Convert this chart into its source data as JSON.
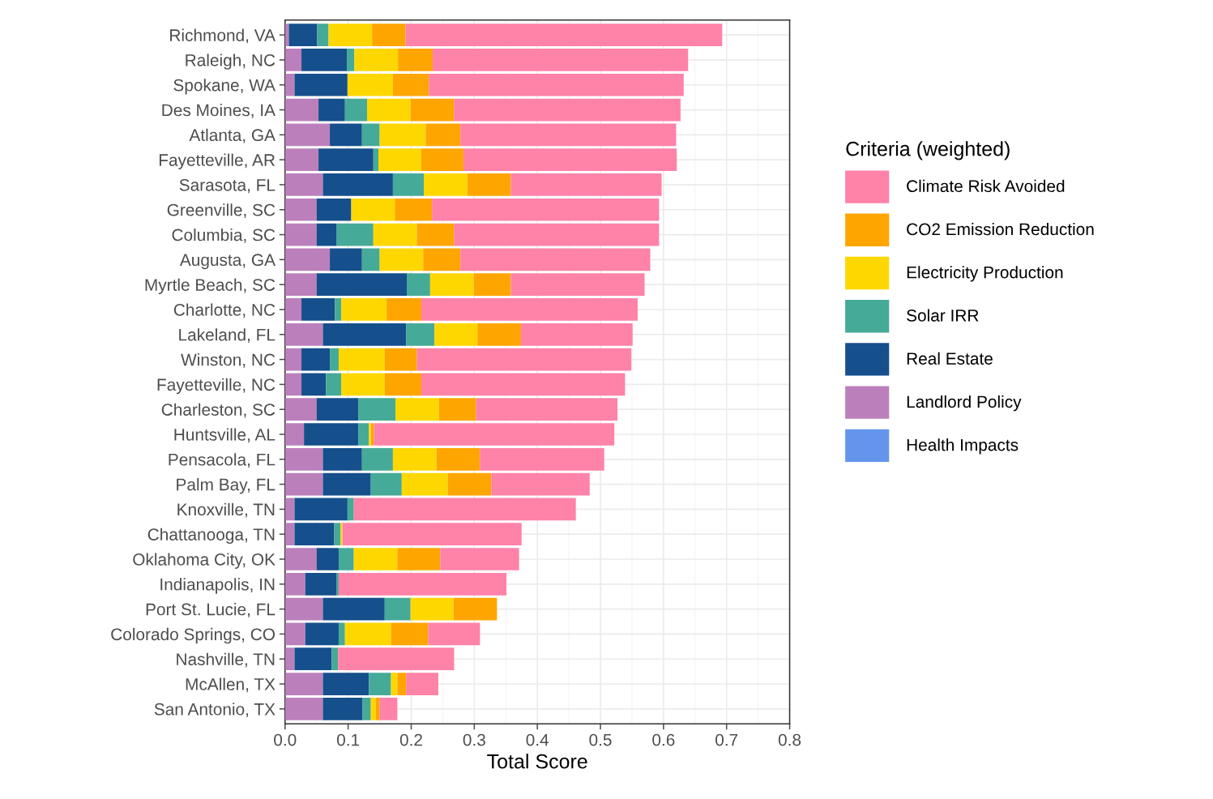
{
  "chart_data": {
    "type": "bar",
    "orientation": "horizontal",
    "stacked": true,
    "xlabel": "Total Score",
    "legend_title": "Criteria (weighted)",
    "legend": "right",
    "grid": true,
    "xlim": [
      0,
      0.8
    ],
    "xticks": [
      {
        "value": 0,
        "label": "0.0"
      },
      0.1,
      0.2,
      0.3,
      0.4,
      0.5,
      0.6,
      0.7,
      0.8
    ],
    "categories": [
      "Richmond, VA",
      "Raleigh, NC",
      "Spokane, WA",
      "Des Moines, IA",
      "Atlanta, GA",
      "Fayetteville, AR",
      "Sarasota, FL",
      "Greenville, SC",
      "Columbia, SC",
      "Augusta, GA",
      "Myrtle Beach, SC",
      "Charlotte, NC",
      "Lakeland, FL",
      "Winston, NC",
      "Fayetteville, NC",
      "Charleston, SC",
      "Huntsville, AL",
      "Pensacola, FL",
      "Palm Bay, FL",
      "Knoxville, TN",
      "Chattanooga, TN",
      "Oklahoma City, OK",
      "Indianapolis, IN",
      "Port St. Lucie, FL",
      "Colorado Springs, CO",
      "Nashville, TN",
      "McAllen, TX",
      "San Antonio, TX"
    ],
    "series": [
      {
        "name": "Health Impacts",
        "color": "#6495ed",
        "values": [
          0,
          0,
          0,
          0,
          0,
          0,
          0,
          0,
          0,
          0,
          0,
          0,
          0,
          0,
          0,
          0,
          0,
          0,
          0,
          0,
          0,
          0,
          0,
          0,
          0,
          0,
          0,
          0
        ]
      },
      {
        "name": "Landlord Policy",
        "color": "#bb80bb",
        "values": [
          0.006,
          0.026,
          0.015,
          0.053,
          0.071,
          0.053,
          0.06,
          0.05,
          0.05,
          0.071,
          0.05,
          0.026,
          0.06,
          0.026,
          0.026,
          0.05,
          0.03,
          0.06,
          0.06,
          0.015,
          0.015,
          0.05,
          0.032,
          0.06,
          0.032,
          0.015,
          0.06,
          0.06
        ]
      },
      {
        "name": "Real Estate",
        "color": "#154f8c",
        "values": [
          0.045,
          0.072,
          0.084,
          0.042,
          0.051,
          0.087,
          0.111,
          0.055,
          0.032,
          0.051,
          0.143,
          0.053,
          0.132,
          0.045,
          0.039,
          0.066,
          0.086,
          0.062,
          0.076,
          0.084,
          0.063,
          0.035,
          0.05,
          0.098,
          0.053,
          0.059,
          0.073,
          0.063
        ]
      },
      {
        "name": "Solar IRR",
        "color": "#45aa98",
        "values": [
          0.018,
          0.012,
          0,
          0.035,
          0.028,
          0.008,
          0.049,
          0,
          0.058,
          0.028,
          0.037,
          0.01,
          0.045,
          0.014,
          0.024,
          0.059,
          0.017,
          0.049,
          0.049,
          0.01,
          0.01,
          0.024,
          0.003,
          0.041,
          0.01,
          0.01,
          0.035,
          0.013
        ]
      },
      {
        "name": "Electricity Production",
        "color": "#ffd700",
        "values": [
          0.069,
          0.069,
          0.072,
          0.069,
          0.073,
          0.068,
          0.069,
          0.069,
          0.069,
          0.069,
          0.069,
          0.072,
          0.068,
          0.073,
          0.069,
          0.069,
          0.003,
          0.069,
          0.073,
          0,
          0.003,
          0.069,
          0,
          0.068,
          0.073,
          0,
          0.01,
          0.008
        ]
      },
      {
        "name": "CO2 Emission Reduction",
        "color": "#ffa500",
        "values": [
          0.053,
          0.055,
          0.057,
          0.069,
          0.055,
          0.067,
          0.069,
          0.059,
          0.059,
          0.059,
          0.059,
          0.055,
          0.069,
          0.051,
          0.058,
          0.059,
          0.005,
          0.069,
          0.069,
          0,
          0,
          0.068,
          0,
          0.069,
          0.059,
          0,
          0.014,
          0.006
        ]
      },
      {
        "name": "Climate Risk Avoided",
        "color": "#ff82a9",
        "values": [
          0.502,
          0.405,
          0.404,
          0.359,
          0.342,
          0.338,
          0.239,
          0.36,
          0.325,
          0.301,
          0.212,
          0.343,
          0.177,
          0.34,
          0.323,
          0.224,
          0.381,
          0.197,
          0.156,
          0.352,
          0.284,
          0.125,
          0.266,
          0,
          0.082,
          0.184,
          0.051,
          0.028
        ]
      }
    ]
  }
}
